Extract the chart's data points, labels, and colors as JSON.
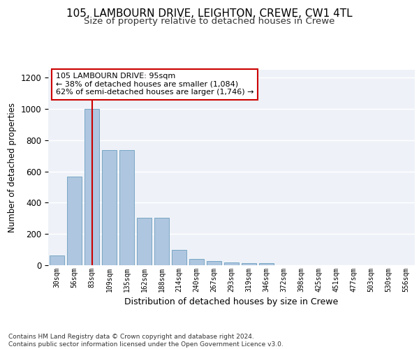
{
  "title1": "105, LAMBOURN DRIVE, LEIGHTON, CREWE, CW1 4TL",
  "title2": "Size of property relative to detached houses in Crewe",
  "xlabel": "Distribution of detached houses by size in Crewe",
  "ylabel": "Number of detached properties",
  "categories": [
    "30sqm",
    "56sqm",
    "83sqm",
    "109sqm",
    "135sqm",
    "162sqm",
    "188sqm",
    "214sqm",
    "240sqm",
    "267sqm",
    "293sqm",
    "319sqm",
    "346sqm",
    "372sqm",
    "398sqm",
    "425sqm",
    "451sqm",
    "477sqm",
    "503sqm",
    "530sqm",
    "556sqm"
  ],
  "values": [
    63,
    567,
    1000,
    735,
    735,
    305,
    305,
    100,
    38,
    25,
    20,
    13,
    13,
    0,
    0,
    0,
    0,
    0,
    0,
    0,
    0
  ],
  "bar_color": "#aec6df",
  "bar_edge_color": "#6a9dbf",
  "vline_x": 2,
  "vline_color": "#cc0000",
  "annotation_text": "105 LAMBOURN DRIVE: 95sqm\n← 38% of detached houses are smaller (1,084)\n62% of semi-detached houses are larger (1,746) →",
  "annotation_box_color": "#ffffff",
  "annotation_box_edge": "#cc0000",
  "footer_text": "Contains HM Land Registry data © Crown copyright and database right 2024.\nContains public sector information licensed under the Open Government Licence v3.0.",
  "ylim": [
    0,
    1250
  ],
  "yticks": [
    0,
    200,
    400,
    600,
    800,
    1000,
    1200
  ],
  "bg_color": "#eef2f8",
  "grid_color": "#ffffff",
  "title1_fontsize": 11,
  "title2_fontsize": 9.5
}
